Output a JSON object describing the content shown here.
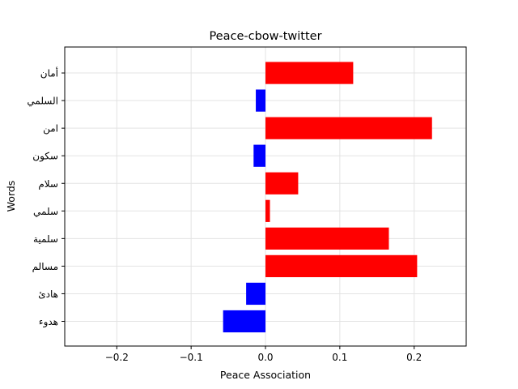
{
  "chart_data": {
    "type": "bar",
    "orientation": "horizontal",
    "title": "Peace-cbow-twitter",
    "xlabel": "Peace Association",
    "ylabel": "Words",
    "xlim": [
      -0.27,
      0.27
    ],
    "x_ticks": [
      -0.2,
      -0.1,
      0.0,
      0.1,
      0.2
    ],
    "x_tick_labels": [
      "−0.2",
      "−0.1",
      "0.0",
      "0.1",
      "0.2"
    ],
    "grid": true,
    "categories": [
      "هدوء",
      "هادئ",
      "مسالم",
      "سلمية",
      "سلمي",
      "سلام",
      "سكون",
      "امن",
      "السلمي",
      "أمان"
    ],
    "values": [
      -0.057,
      -0.026,
      0.204,
      0.166,
      0.006,
      0.044,
      -0.016,
      0.224,
      -0.013,
      0.118
    ],
    "colors": {
      "positive": "#ff0000",
      "negative": "#0000ff"
    }
  }
}
